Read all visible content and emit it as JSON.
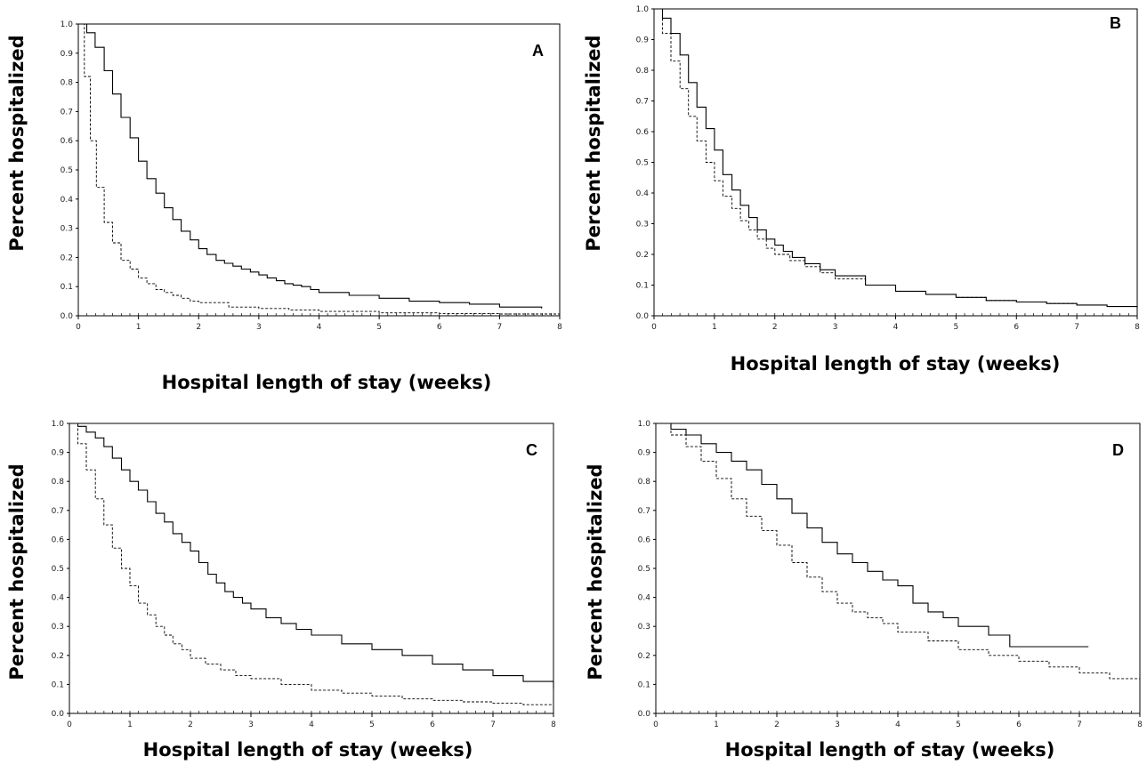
{
  "chart_data": [
    {
      "type": "line",
      "panel_label": "A",
      "xlabel": "Hospital length of stay (weeks)",
      "ylabel": "Percent hospitalized",
      "xlim": [
        0,
        8
      ],
      "ylim": [
        0,
        1.0
      ],
      "x_ticks": [
        "0",
        "1",
        "2",
        "3",
        "4",
        "5",
        "6",
        "7",
        "8"
      ],
      "y_ticks": [
        "0.0",
        "0.1",
        "0.2",
        "0.3",
        "0.4",
        "0.5",
        "0.6",
        "0.7",
        "0.8",
        "0.9",
        "1.0"
      ],
      "grid": false,
      "series": [
        {
          "style": "solid",
          "x": [
            0,
            0.14,
            0.28,
            0.43,
            0.57,
            0.71,
            0.86,
            1.0,
            1.14,
            1.29,
            1.43,
            1.57,
            1.71,
            1.86,
            2.0,
            2.14,
            2.29,
            2.43,
            2.57,
            2.71,
            2.86,
            3.0,
            3.14,
            3.29,
            3.43,
            3.57,
            3.71,
            3.86,
            4.0,
            4.5,
            5.0,
            5.5,
            6.0,
            6.5,
            7.0,
            7.7
          ],
          "y": [
            1.0,
            0.97,
            0.92,
            0.84,
            0.76,
            0.68,
            0.61,
            0.53,
            0.47,
            0.42,
            0.37,
            0.33,
            0.29,
            0.26,
            0.23,
            0.21,
            0.19,
            0.18,
            0.17,
            0.16,
            0.15,
            0.14,
            0.13,
            0.12,
            0.11,
            0.105,
            0.1,
            0.09,
            0.08,
            0.07,
            0.06,
            0.05,
            0.045,
            0.04,
            0.03,
            0.025
          ]
        },
        {
          "style": "dashed",
          "x": [
            0,
            0.1,
            0.2,
            0.3,
            0.43,
            0.57,
            0.71,
            0.86,
            1.0,
            1.14,
            1.29,
            1.43,
            1.57,
            1.71,
            1.86,
            2.0,
            2.5,
            3.0,
            3.5,
            4.0,
            5.0,
            6.0,
            7.0,
            8.0
          ],
          "y": [
            1.0,
            0.82,
            0.6,
            0.44,
            0.32,
            0.25,
            0.19,
            0.16,
            0.13,
            0.11,
            0.09,
            0.08,
            0.07,
            0.06,
            0.05,
            0.045,
            0.03,
            0.025,
            0.02,
            0.015,
            0.01,
            0.008,
            0.006,
            0.005
          ]
        }
      ]
    },
    {
      "type": "line",
      "panel_label": "B",
      "xlabel": "Hospital length of stay (weeks)",
      "ylabel": "Percent hospitalized",
      "xlim": [
        0,
        8
      ],
      "ylim": [
        0,
        1.0
      ],
      "x_ticks": [
        "0",
        "1",
        "2",
        "3",
        "4",
        "5",
        "6",
        "7",
        "8"
      ],
      "y_ticks": [
        "0.0",
        "0.1",
        "0.2",
        "0.3",
        "0.4",
        "0.5",
        "0.6",
        "0.7",
        "0.8",
        "0.9",
        "1.0"
      ],
      "grid": false,
      "series": [
        {
          "style": "solid",
          "x": [
            0,
            0.14,
            0.28,
            0.43,
            0.57,
            0.71,
            0.86,
            1.0,
            1.14,
            1.29,
            1.43,
            1.57,
            1.71,
            1.86,
            2.0,
            2.14,
            2.29,
            2.5,
            2.75,
            3.0,
            3.5,
            4.0,
            4.5,
            5.0,
            5.5,
            6.0,
            6.5,
            7.0,
            7.5,
            8.0
          ],
          "y": [
            1.0,
            0.97,
            0.92,
            0.85,
            0.76,
            0.68,
            0.61,
            0.54,
            0.46,
            0.41,
            0.36,
            0.32,
            0.28,
            0.25,
            0.23,
            0.21,
            0.19,
            0.17,
            0.15,
            0.13,
            0.1,
            0.08,
            0.07,
            0.06,
            0.05,
            0.045,
            0.04,
            0.035,
            0.03,
            0.025
          ]
        },
        {
          "style": "dashed",
          "x": [
            0,
            0.14,
            0.28,
            0.43,
            0.57,
            0.71,
            0.86,
            1.0,
            1.14,
            1.29,
            1.43,
            1.57,
            1.71,
            1.86,
            2.0,
            2.25,
            2.5,
            2.75,
            3.0,
            3.5,
            4.0,
            4.5,
            5.0,
            5.5,
            6.0,
            6.5,
            7.0,
            7.5,
            8.0
          ],
          "y": [
            1.0,
            0.92,
            0.83,
            0.74,
            0.65,
            0.57,
            0.5,
            0.44,
            0.39,
            0.35,
            0.31,
            0.28,
            0.25,
            0.22,
            0.2,
            0.18,
            0.16,
            0.14,
            0.12,
            0.1,
            0.08,
            0.07,
            0.06,
            0.05,
            0.045,
            0.04,
            0.035,
            0.03,
            0.025
          ]
        }
      ]
    },
    {
      "type": "line",
      "panel_label": "C",
      "xlabel": "Hospital length of stay (weeks)",
      "ylabel": "Percent hospitalized",
      "xlim": [
        0,
        8
      ],
      "ylim": [
        0,
        1.0
      ],
      "x_ticks": [
        "0",
        "1",
        "2",
        "3",
        "4",
        "5",
        "6",
        "7",
        "8"
      ],
      "y_ticks": [
        "0.0",
        "0.1",
        "0.2",
        "0.3",
        "0.4",
        "0.5",
        "0.6",
        "0.7",
        "0.8",
        "0.9",
        "1.0"
      ],
      "grid": false,
      "series": [
        {
          "style": "solid",
          "x": [
            0,
            0.14,
            0.28,
            0.43,
            0.57,
            0.71,
            0.86,
            1.0,
            1.14,
            1.29,
            1.43,
            1.57,
            1.71,
            1.86,
            2.0,
            2.14,
            2.29,
            2.43,
            2.57,
            2.71,
            2.86,
            3.0,
            3.25,
            3.5,
            3.75,
            4.0,
            4.5,
            5.0,
            5.5,
            6.0,
            6.5,
            7.0,
            7.5,
            8.0
          ],
          "y": [
            1.0,
            0.99,
            0.97,
            0.95,
            0.92,
            0.88,
            0.84,
            0.8,
            0.77,
            0.73,
            0.69,
            0.66,
            0.62,
            0.59,
            0.56,
            0.52,
            0.48,
            0.45,
            0.42,
            0.4,
            0.38,
            0.36,
            0.33,
            0.31,
            0.29,
            0.27,
            0.24,
            0.22,
            0.2,
            0.17,
            0.15,
            0.13,
            0.11,
            0.085
          ]
        },
        {
          "style": "dashed",
          "x": [
            0,
            0.14,
            0.28,
            0.43,
            0.57,
            0.71,
            0.86,
            1.0,
            1.14,
            1.29,
            1.43,
            1.57,
            1.71,
            1.86,
            2.0,
            2.25,
            2.5,
            2.75,
            3.0,
            3.5,
            4.0,
            4.5,
            5.0,
            5.5,
            6.0,
            6.5,
            7.0,
            7.5,
            8.0
          ],
          "y": [
            1.0,
            0.93,
            0.84,
            0.74,
            0.65,
            0.57,
            0.5,
            0.44,
            0.38,
            0.34,
            0.3,
            0.27,
            0.24,
            0.22,
            0.19,
            0.17,
            0.15,
            0.13,
            0.12,
            0.1,
            0.08,
            0.07,
            0.06,
            0.05,
            0.045,
            0.04,
            0.035,
            0.03,
            0.025
          ]
        }
      ]
    },
    {
      "type": "line",
      "panel_label": "D",
      "xlabel": "Hospital length of stay (weeks)",
      "ylabel": "Percent hospitalized",
      "xlim": [
        0,
        8
      ],
      "ylim": [
        0,
        1.0
      ],
      "x_ticks": [
        "0",
        "1",
        "2",
        "3",
        "4",
        "5",
        "6",
        "7",
        "8"
      ],
      "y_ticks": [
        "0.0",
        "0.1",
        "0.2",
        "0.3",
        "0.4",
        "0.5",
        "0.6",
        "0.7",
        "0.8",
        "0.9",
        "1.0"
      ],
      "grid": false,
      "series": [
        {
          "style": "solid",
          "x": [
            0,
            0.25,
            0.5,
            0.75,
            1.0,
            1.25,
            1.5,
            1.75,
            2.0,
            2.25,
            2.5,
            2.75,
            3.0,
            3.25,
            3.5,
            3.75,
            4.0,
            4.25,
            4.5,
            4.75,
            5.0,
            5.5,
            5.85,
            7.15
          ],
          "y": [
            1.0,
            0.98,
            0.96,
            0.93,
            0.9,
            0.87,
            0.84,
            0.79,
            0.74,
            0.69,
            0.64,
            0.59,
            0.55,
            0.52,
            0.49,
            0.46,
            0.44,
            0.38,
            0.35,
            0.33,
            0.3,
            0.27,
            0.23,
            0.23
          ]
        },
        {
          "style": "dashed",
          "x": [
            0,
            0.25,
            0.5,
            0.75,
            1.0,
            1.25,
            1.5,
            1.75,
            2.0,
            2.25,
            2.5,
            2.75,
            3.0,
            3.25,
            3.5,
            3.75,
            4.0,
            4.5,
            5.0,
            5.5,
            6.0,
            6.5,
            7.0,
            7.5,
            8.0
          ],
          "y": [
            1.0,
            0.96,
            0.92,
            0.87,
            0.81,
            0.74,
            0.68,
            0.63,
            0.58,
            0.52,
            0.47,
            0.42,
            0.38,
            0.35,
            0.33,
            0.31,
            0.28,
            0.25,
            0.22,
            0.2,
            0.18,
            0.16,
            0.14,
            0.12,
            0.1
          ]
        }
      ]
    }
  ]
}
